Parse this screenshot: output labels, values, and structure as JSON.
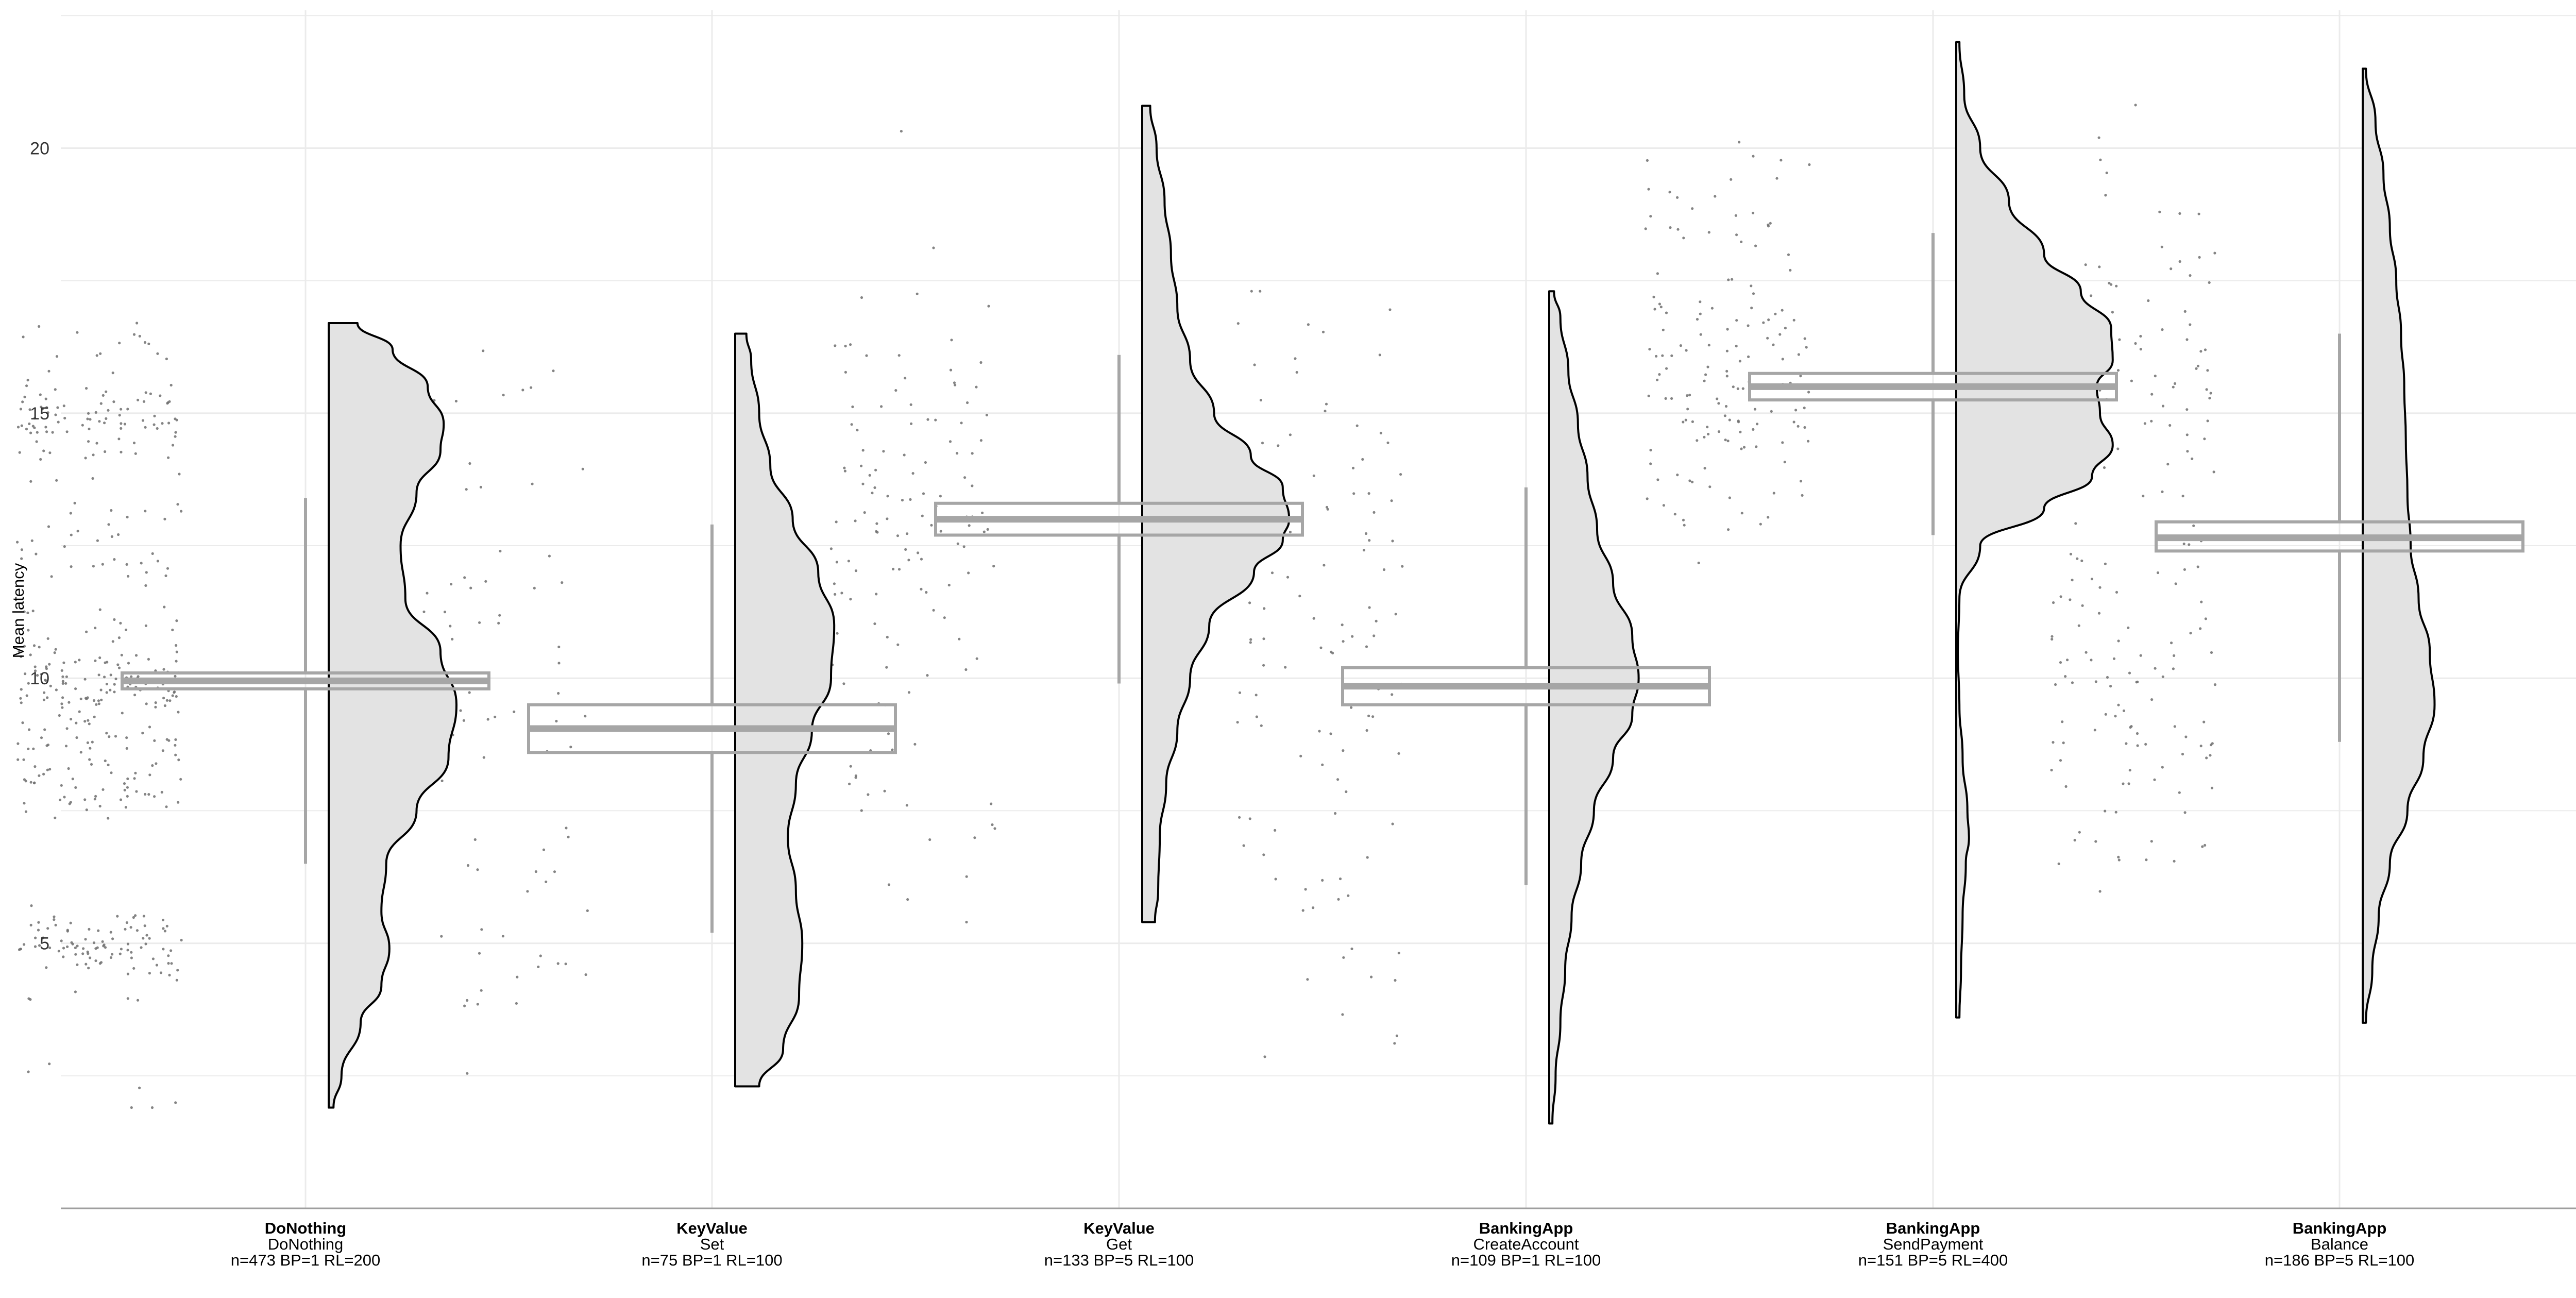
{
  "chart_data": {
    "type": "raincloud",
    "ylabel": "Mean latency",
    "ylim": [
      0,
      22.6
    ],
    "yticks": [
      5,
      10,
      15,
      20
    ],
    "grid": true,
    "colors": {
      "grid": "#ebebeb",
      "axis": "#9e9e9e",
      "box": "#a6a6a6",
      "violin_fill": "#e3e3e3",
      "violin_stroke": "#000000",
      "points": "#6e6e6e"
    },
    "categories": [
      {
        "line1": "DoNothing",
        "line2": "DoNothing",
        "line3": "n=473 BP=1 RL=200",
        "n": 473,
        "box": {
          "q1": 9.8,
          "median": 9.95,
          "q3": 10.1,
          "whisker_low": 6.5,
          "whisker_high": 13.4
        },
        "violin": {
          "min": 1.9,
          "max": 16.7,
          "profile": [
            [
              1.9,
              0.03
            ],
            [
              2.5,
              0.08
            ],
            [
              3.5,
              0.2
            ],
            [
              4.2,
              0.33
            ],
            [
              4.9,
              0.38
            ],
            [
              5.6,
              0.33
            ],
            [
              6.5,
              0.36
            ],
            [
              7.5,
              0.55
            ],
            [
              8.5,
              0.75
            ],
            [
              9.5,
              0.8
            ],
            [
              10.5,
              0.7
            ],
            [
              11.5,
              0.48
            ],
            [
              12.5,
              0.45
            ],
            [
              13.5,
              0.55
            ],
            [
              14.3,
              0.7
            ],
            [
              14.8,
              0.72
            ],
            [
              15.5,
              0.62
            ],
            [
              16.2,
              0.4
            ],
            [
              16.7,
              0.18
            ]
          ]
        },
        "point_clusters": [
          [
            5.0,
            0.35,
            0.24
          ],
          [
            7.8,
            0.25,
            0.1
          ],
          [
            8.7,
            0.35,
            0.12
          ],
          [
            9.9,
            0.35,
            0.3
          ],
          [
            11.0,
            0.45,
            0.06
          ],
          [
            12.5,
            0.4,
            0.06
          ],
          [
            14.9,
            0.35,
            0.22
          ],
          [
            13.3,
            0.8,
            0.04
          ],
          [
            3.0,
            0.9,
            0.02
          ],
          [
            16.3,
            0.4,
            0.04
          ],
          [
            2.3,
            0.3,
            0.01
          ]
        ]
      },
      {
        "line1": "KeyValue",
        "line2": "Set",
        "line3": "n=75 BP=1 RL=100",
        "n": 75,
        "box": {
          "q1": 8.6,
          "median": 9.05,
          "q3": 9.5,
          "whisker_low": 5.2,
          "whisker_high": 12.9
        },
        "violin": {
          "min": 2.3,
          "max": 16.5,
          "profile": [
            [
              2.3,
              0.15
            ],
            [
              3.0,
              0.3
            ],
            [
              4.0,
              0.4
            ],
            [
              5.0,
              0.42
            ],
            [
              6.0,
              0.38
            ],
            [
              7.0,
              0.33
            ],
            [
              8.0,
              0.38
            ],
            [
              9.0,
              0.48
            ],
            [
              10.0,
              0.6
            ],
            [
              11.0,
              0.62
            ],
            [
              12.0,
              0.52
            ],
            [
              13.0,
              0.36
            ],
            [
              14.0,
              0.22
            ],
            [
              15.0,
              0.15
            ],
            [
              16.0,
              0.1
            ],
            [
              16.5,
              0.07
            ]
          ]
        },
        "point_clusters": [
          [
            5.0,
            1.2,
            0.35
          ],
          [
            9.5,
            1.5,
            0.4
          ],
          [
            12.5,
            1.5,
            0.15
          ],
          [
            15.2,
            0.6,
            0.1
          ]
        ]
      },
      {
        "line1": "KeyValue",
        "line2": "Get",
        "line3": "n=133 BP=5 RL=100",
        "n": 133,
        "box": {
          "q1": 12.7,
          "median": 13.0,
          "q3": 13.3,
          "whisker_low": 9.9,
          "whisker_high": 16.1
        },
        "violin": {
          "min": 5.4,
          "max": 20.8,
          "profile": [
            [
              5.4,
              0.08
            ],
            [
              6.0,
              0.1
            ],
            [
              7.0,
              0.11
            ],
            [
              8.0,
              0.15
            ],
            [
              9.0,
              0.22
            ],
            [
              10.0,
              0.3
            ],
            [
              11.0,
              0.42
            ],
            [
              12.0,
              0.7
            ],
            [
              12.6,
              0.88
            ],
            [
              13.0,
              0.92
            ],
            [
              13.6,
              0.88
            ],
            [
              14.2,
              0.68
            ],
            [
              15.0,
              0.45
            ],
            [
              16.0,
              0.3
            ],
            [
              17.0,
              0.22
            ],
            [
              18.0,
              0.18
            ],
            [
              19.0,
              0.14
            ],
            [
              20.0,
              0.09
            ],
            [
              20.8,
              0.05
            ]
          ]
        },
        "point_clusters": [
          [
            13.2,
            1.3,
            0.55
          ],
          [
            10.0,
            1.6,
            0.2
          ],
          [
            16.5,
            1.6,
            0.15
          ],
          [
            7.0,
            1.5,
            0.1
          ]
        ]
      },
      {
        "line1": "BankingApp",
        "line2": "CreateAccount",
        "line3": "n=109 BP=1 RL=100",
        "n": 109,
        "box": {
          "q1": 9.5,
          "median": 9.85,
          "q3": 10.2,
          "whisker_low": 6.1,
          "whisker_high": 13.6
        },
        "violin": {
          "min": 1.6,
          "max": 17.3,
          "profile": [
            [
              1.6,
              0.02
            ],
            [
              2.5,
              0.04
            ],
            [
              3.5,
              0.07
            ],
            [
              4.5,
              0.1
            ],
            [
              5.5,
              0.14
            ],
            [
              6.5,
              0.2
            ],
            [
              7.5,
              0.28
            ],
            [
              8.5,
              0.4
            ],
            [
              9.3,
              0.52
            ],
            [
              10.0,
              0.56
            ],
            [
              10.8,
              0.52
            ],
            [
              11.8,
              0.4
            ],
            [
              12.8,
              0.3
            ],
            [
              13.8,
              0.24
            ],
            [
              14.8,
              0.18
            ],
            [
              15.8,
              0.12
            ],
            [
              16.8,
              0.07
            ],
            [
              17.3,
              0.03
            ]
          ]
        },
        "point_clusters": [
          [
            9.8,
            1.1,
            0.35
          ],
          [
            13.0,
            1.3,
            0.2
          ],
          [
            6.5,
            1.4,
            0.15
          ],
          [
            3.8,
            1.0,
            0.1
          ],
          [
            16.0,
            1.0,
            0.1
          ],
          [
            11.5,
            1.2,
            0.1
          ]
        ]
      },
      {
        "line1": "BankingApp",
        "line2": "SendPayment",
        "line3": "n=151 BP=5 RL=400",
        "n": 151,
        "box": {
          "q1": 15.25,
          "median": 15.5,
          "q3": 15.75,
          "whisker_low": 12.7,
          "whisker_high": 18.4
        },
        "violin": {
          "min": 3.6,
          "max": 22.0,
          "profile": [
            [
              3.6,
              0.02
            ],
            [
              4.5,
              0.03
            ],
            [
              5.5,
              0.04
            ],
            [
              6.5,
              0.06
            ],
            [
              7.0,
              0.08
            ],
            [
              7.5,
              0.07
            ],
            [
              8.5,
              0.04
            ],
            [
              9.5,
              0.02
            ],
            [
              10.5,
              0.01
            ],
            [
              11.5,
              0.02
            ],
            [
              12.5,
              0.15
            ],
            [
              13.2,
              0.55
            ],
            [
              13.8,
              0.85
            ],
            [
              14.4,
              0.98
            ],
            [
              15.0,
              0.9
            ],
            [
              15.5,
              0.88
            ],
            [
              16.0,
              0.98
            ],
            [
              16.6,
              0.97
            ],
            [
              17.3,
              0.78
            ],
            [
              18.0,
              0.55
            ],
            [
              19.0,
              0.33
            ],
            [
              20.0,
              0.15
            ],
            [
              21.0,
              0.05
            ],
            [
              22.0,
              0.02
            ]
          ]
        },
        "point_clusters": [
          [
            16.5,
            1.2,
            0.4
          ],
          [
            14.3,
            1.0,
            0.3
          ],
          [
            18.5,
            1.0,
            0.15
          ],
          [
            15.3,
            1.1,
            0.1
          ]
        ]
      },
      {
        "line1": "BankingApp",
        "line2": "Balance",
        "line3": "n=186 BP=5 RL=100",
        "n": 186,
        "box": {
          "q1": 12.4,
          "median": 12.65,
          "q3": 12.95,
          "whisker_low": 8.8,
          "whisker_high": 16.5
        },
        "violin": {
          "min": 3.5,
          "max": 21.5,
          "profile": [
            [
              3.5,
              0.02
            ],
            [
              4.5,
              0.06
            ],
            [
              5.5,
              0.1
            ],
            [
              6.5,
              0.17
            ],
            [
              7.5,
              0.28
            ],
            [
              8.5,
              0.38
            ],
            [
              9.5,
              0.45
            ],
            [
              10.5,
              0.42
            ],
            [
              11.5,
              0.35
            ],
            [
              12.5,
              0.3
            ],
            [
              13.5,
              0.28
            ],
            [
              14.5,
              0.27
            ],
            [
              15.5,
              0.26
            ],
            [
              16.5,
              0.24
            ],
            [
              17.5,
              0.21
            ],
            [
              18.5,
              0.17
            ],
            [
              19.5,
              0.13
            ],
            [
              20.5,
              0.08
            ],
            [
              21.5,
              0.02
            ]
          ]
        },
        "point_clusters": [
          [
            9.4,
            1.0,
            0.3
          ],
          [
            11.8,
            1.0,
            0.15
          ],
          [
            14.5,
            1.3,
            0.2
          ],
          [
            16.5,
            1.3,
            0.15
          ],
          [
            18.5,
            1.2,
            0.1
          ],
          [
            7.0,
            1.5,
            0.1
          ]
        ]
      }
    ]
  }
}
